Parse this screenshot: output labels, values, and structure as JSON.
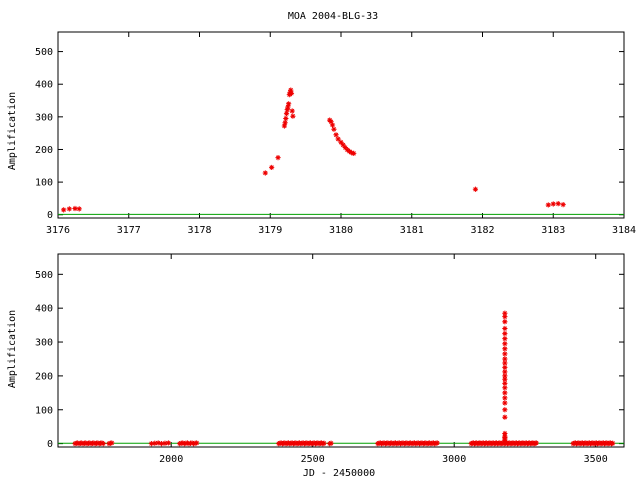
{
  "chart_data": [
    {
      "type": "scatter",
      "title": "MOA 2004-BLG-33",
      "xlabel": "",
      "ylabel": "Amplification",
      "xlim": [
        3176,
        3184
      ],
      "ylim": [
        -10,
        560
      ],
      "xticks": [
        3176,
        3177,
        3178,
        3179,
        3180,
        3181,
        3182,
        3183,
        3184
      ],
      "yticks": [
        0,
        100,
        200,
        300,
        400,
        500
      ],
      "baseline": 1,
      "colors": {
        "points": "#ee0000",
        "baseline": "#00a000"
      },
      "grid": false,
      "points": [
        [
          3176.08,
          15
        ],
        [
          3176.16,
          18
        ],
        [
          3176.24,
          19
        ],
        [
          3176.3,
          18
        ],
        [
          3178.93,
          128
        ],
        [
          3179.02,
          145
        ],
        [
          3179.11,
          175
        ],
        [
          3179.2,
          272
        ],
        [
          3179.21,
          282
        ],
        [
          3179.22,
          295
        ],
        [
          3179.23,
          310
        ],
        [
          3179.24,
          322
        ],
        [
          3179.25,
          330
        ],
        [
          3179.26,
          340
        ],
        [
          3179.27,
          368
        ],
        [
          3179.28,
          375
        ],
        [
          3179.29,
          382
        ],
        [
          3179.3,
          372
        ],
        [
          3179.31,
          318
        ],
        [
          3179.32,
          302
        ],
        [
          3179.84,
          290
        ],
        [
          3179.86,
          285
        ],
        [
          3179.88,
          275
        ],
        [
          3179.9,
          262
        ],
        [
          3179.93,
          245
        ],
        [
          3179.96,
          232
        ],
        [
          3180.0,
          222
        ],
        [
          3180.03,
          214
        ],
        [
          3180.06,
          206
        ],
        [
          3180.09,
          199
        ],
        [
          3180.12,
          194
        ],
        [
          3180.15,
          190
        ],
        [
          3180.18,
          188
        ],
        [
          3181.9,
          78
        ],
        [
          3182.93,
          30
        ],
        [
          3183.0,
          33
        ],
        [
          3183.07,
          34
        ],
        [
          3183.14,
          31
        ]
      ]
    },
    {
      "type": "scatter",
      "title": "",
      "xlabel": "JD - 2450000",
      "ylabel": "Amplification",
      "xlim": [
        1600,
        3600
      ],
      "ylim": [
        -10,
        560
      ],
      "xticks": [
        2000,
        2500,
        3000,
        3500
      ],
      "yticks": [
        0,
        100,
        200,
        300,
        400,
        500
      ],
      "baseline": 1,
      "colors": {
        "points": "#ee0000",
        "baseline": "#00a000"
      },
      "grid": false,
      "clusters": [
        {
          "from": 1660,
          "to": 1760,
          "n": 22
        },
        {
          "from": 1780,
          "to": 1790,
          "n": 3
        },
        {
          "from": 1930,
          "to": 1990,
          "n": 6
        },
        {
          "from": 2030,
          "to": 2090,
          "n": 12
        },
        {
          "from": 2380,
          "to": 2540,
          "n": 38
        },
        {
          "from": 2560,
          "to": 2565,
          "n": 2
        },
        {
          "from": 2730,
          "to": 2940,
          "n": 48
        },
        {
          "from": 3060,
          "to": 3290,
          "n": 60
        },
        {
          "from": 3420,
          "to": 3560,
          "n": 35
        }
      ],
      "peak": {
        "x": 3179,
        "points": [
          [
            3179,
            385
          ],
          [
            3179,
            375
          ],
          [
            3179,
            360
          ],
          [
            3179,
            340
          ],
          [
            3179,
            325
          ],
          [
            3179,
            310
          ],
          [
            3179,
            295
          ],
          [
            3179,
            280
          ],
          [
            3179,
            265
          ],
          [
            3179,
            250
          ],
          [
            3179,
            238
          ],
          [
            3179,
            225
          ],
          [
            3179,
            212
          ],
          [
            3179,
            200
          ],
          [
            3179,
            190
          ],
          [
            3179,
            178
          ],
          [
            3179,
            165
          ],
          [
            3179,
            150
          ],
          [
            3179,
            135
          ],
          [
            3179,
            120
          ],
          [
            3179,
            100
          ],
          [
            3179,
            78
          ],
          [
            3179,
            30
          ],
          [
            3179,
            22
          ],
          [
            3179,
            18
          ],
          [
            3179,
            14
          ],
          [
            3179,
            10
          ]
        ]
      }
    }
  ]
}
